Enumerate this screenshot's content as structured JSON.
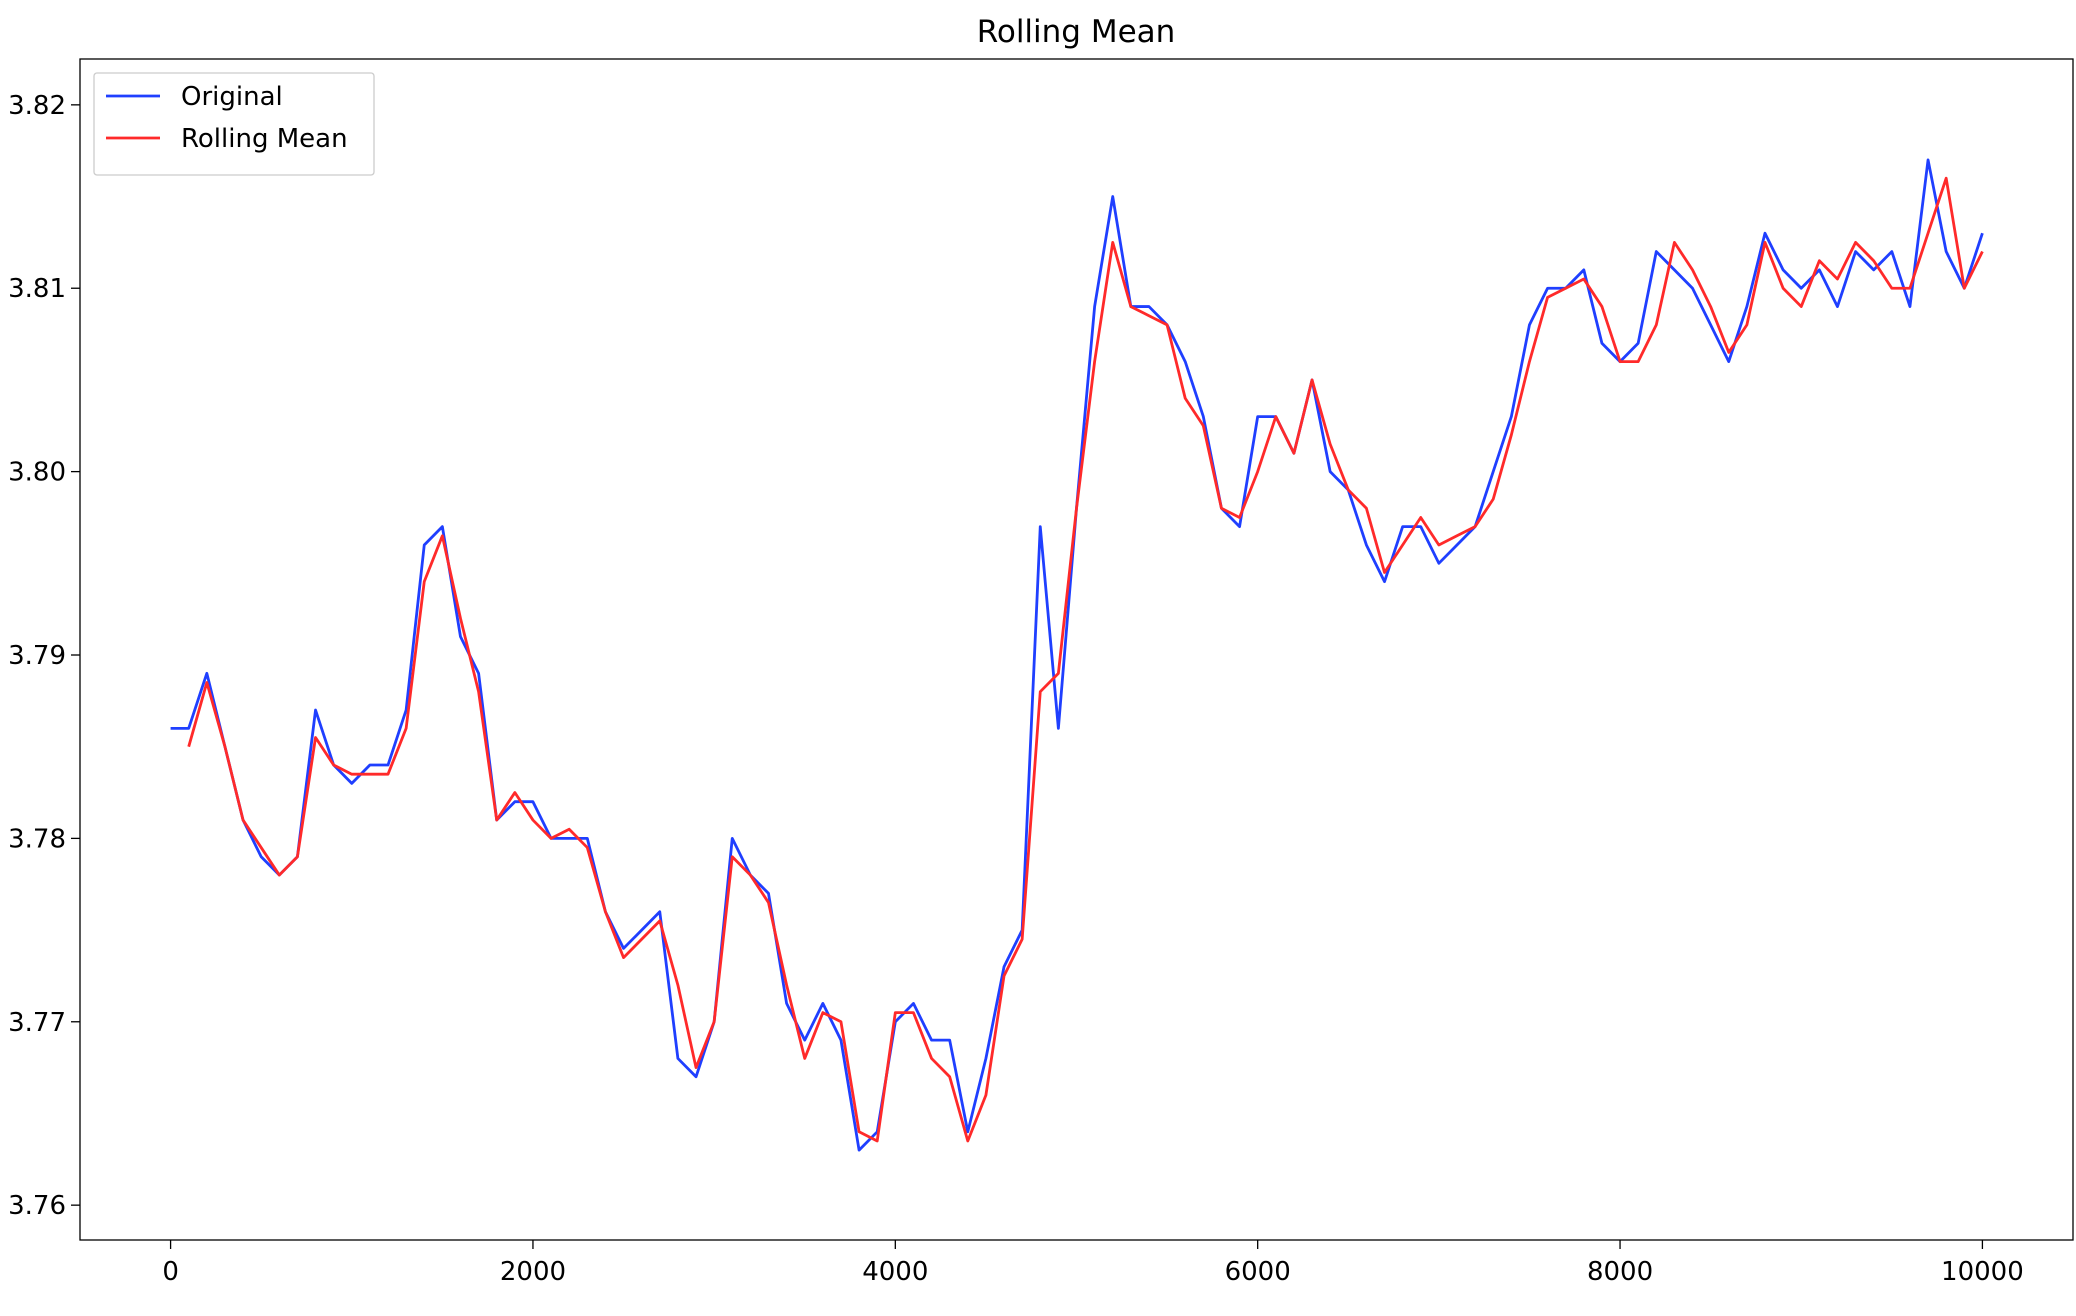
{
  "chart_data": {
    "type": "line",
    "title": "Rolling Mean",
    "x": [
      0,
      100,
      200,
      300,
      400,
      500,
      600,
      700,
      800,
      900,
      1000,
      1100,
      1200,
      1300,
      1400,
      1500,
      1600,
      1700,
      1800,
      1900,
      2000,
      2100,
      2200,
      2300,
      2400,
      2500,
      2600,
      2700,
      2800,
      2900,
      3000,
      3100,
      3200,
      3300,
      3400,
      3500,
      3600,
      3700,
      3800,
      3900,
      4000,
      4100,
      4200,
      4300,
      4400,
      4500,
      4600,
      4700,
      4800,
      4900,
      5000,
      5100,
      5200,
      5300,
      5400,
      5500,
      5600,
      5700,
      5800,
      5900,
      6000,
      6100,
      6200,
      6300,
      6400,
      6500,
      6600,
      6700,
      6800,
      6900,
      7000,
      7100,
      7200,
      7300,
      7400,
      7500,
      7600,
      7700,
      7800,
      7900,
      8000,
      8100,
      8200,
      8300,
      8400,
      8500,
      8600,
      8700,
      8800,
      8900,
      9000,
      9100,
      9200,
      9300,
      9400,
      9500,
      9600,
      9700,
      9800,
      9900,
      10000
    ],
    "series": [
      {
        "name": "Original",
        "color": "#1f3fff",
        "values": [
          3.786,
          3.786,
          3.789,
          3.785,
          3.781,
          3.779,
          3.778,
          3.779,
          3.787,
          3.784,
          3.783,
          3.784,
          3.784,
          3.787,
          3.796,
          3.797,
          3.791,
          3.789,
          3.781,
          3.782,
          3.782,
          3.78,
          3.78,
          3.78,
          3.776,
          3.774,
          3.775,
          3.776,
          3.768,
          3.767,
          3.77,
          3.78,
          3.778,
          3.777,
          3.771,
          3.769,
          3.771,
          3.769,
          3.763,
          3.764,
          3.77,
          3.771,
          3.769,
          3.769,
          3.764,
          3.768,
          3.773,
          3.775,
          3.797,
          3.786,
          3.798,
          3.809,
          3.815,
          3.809,
          3.809,
          3.808,
          3.806,
          3.803,
          3.798,
          3.797,
          3.803,
          3.803,
          3.801,
          3.805,
          3.8,
          3.799,
          3.796,
          3.794,
          3.797,
          3.797,
          3.795,
          3.796,
          3.797,
          3.8,
          3.803,
          3.808,
          3.81,
          3.81,
          3.811,
          3.807,
          3.806,
          3.807,
          3.812,
          3.811,
          3.81,
          3.808,
          3.806,
          3.809,
          3.813,
          3.811,
          3.81,
          3.811,
          3.809,
          3.812,
          3.811,
          3.812,
          3.809,
          3.817,
          3.812,
          3.81,
          3.813
        ]
      },
      {
        "name": "Rolling Mean",
        "color": "#ff2a2a",
        "values": [
          null,
          3.785,
          3.7885,
          3.785,
          3.781,
          3.7795,
          3.778,
          3.779,
          3.7855,
          3.784,
          3.7835,
          3.7835,
          3.7835,
          3.786,
          3.794,
          3.7965,
          3.792,
          3.788,
          3.781,
          3.7825,
          3.781,
          3.78,
          3.7805,
          3.7795,
          3.776,
          3.7735,
          3.7745,
          3.7755,
          3.772,
          3.7675,
          3.77,
          3.779,
          3.778,
          3.7765,
          3.772,
          3.768,
          3.7705,
          3.77,
          3.764,
          3.7635,
          3.7705,
          3.7705,
          3.768,
          3.767,
          3.7635,
          3.766,
          3.7725,
          3.7745,
          3.788,
          3.789,
          3.798,
          3.806,
          3.8125,
          3.809,
          3.8085,
          3.808,
          3.804,
          3.8025,
          3.798,
          3.7975,
          3.8,
          3.803,
          3.801,
          3.805,
          3.8015,
          3.799,
          3.798,
          3.7945,
          3.796,
          3.7975,
          3.796,
          3.7965,
          3.797,
          3.7985,
          3.802,
          3.806,
          3.8095,
          3.81,
          3.8105,
          3.809,
          3.806,
          3.806,
          3.808,
          3.8125,
          3.811,
          3.809,
          3.8065,
          3.808,
          3.8125,
          3.81,
          3.809,
          3.8115,
          3.8105,
          3.8125,
          3.8115,
          3.81,
          3.81,
          3.813,
          3.816,
          3.81,
          3.812
        ]
      }
    ],
    "xlim": [
      -500,
      10500
    ],
    "xticks": [
      0,
      2000,
      4000,
      6000,
      8000,
      10000
    ],
    "ylim": [
      3.7581,
      3.8225
    ],
    "yticks": [
      3.76,
      3.77,
      3.78,
      3.79,
      {
        "value": 3.8,
        "label": "3.80"
      },
      3.81,
      3.82
    ],
    "legend": "upper left"
  }
}
